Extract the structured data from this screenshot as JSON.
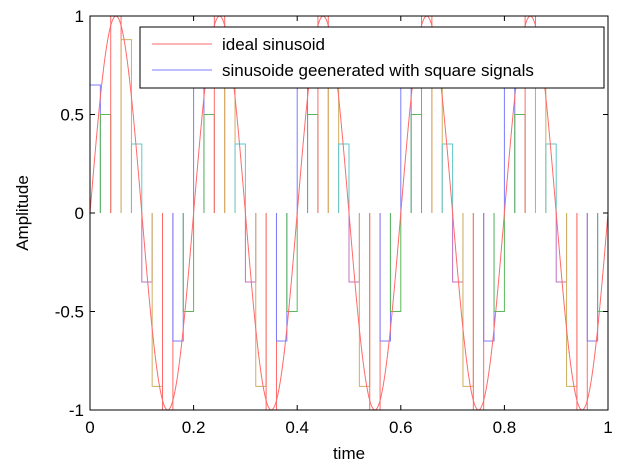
{
  "chart_data": {
    "type": "line",
    "title": "",
    "xlabel": "time",
    "ylabel": "Amplitude",
    "xlim": [
      0,
      1
    ],
    "ylim": [
      -1,
      1
    ],
    "xticks": [
      "0",
      "0.2",
      "0.4",
      "0.6",
      "0.8",
      "1"
    ],
    "yticks": [
      "-1",
      "-0.5",
      "0",
      "0.5",
      "1"
    ],
    "grid": false,
    "legend_position": "top-right",
    "signal": {
      "frequency": 5,
      "steps_per_period": 10
    },
    "series": [
      {
        "name": "ideal sinusoid",
        "color": "#ff6a6a",
        "style": "line",
        "x": [
          0,
          0.025,
          0.05,
          0.075,
          0.1,
          0.125,
          0.15,
          0.175,
          0.2,
          0.225,
          0.25,
          0.275,
          0.3,
          0.325,
          0.35,
          0.375,
          0.4,
          0.425,
          0.45,
          0.475,
          0.5,
          0.525,
          0.55,
          0.575,
          0.6,
          0.625,
          0.65,
          0.675,
          0.7,
          0.725,
          0.75,
          0.775,
          0.8,
          0.825,
          0.85,
          0.875,
          0.9,
          0.925,
          0.95,
          0.975,
          1
        ],
        "values": [
          0,
          0.707,
          1,
          0.707,
          0,
          -0.707,
          -1,
          -0.707,
          0,
          0.707,
          1,
          0.707,
          0,
          -0.707,
          -1,
          -0.707,
          0,
          0.707,
          1,
          0.707,
          0,
          -0.707,
          -1,
          -0.707,
          0,
          0.707,
          1,
          0.707,
          0,
          -0.707,
          -1,
          -0.707,
          0,
          0.707,
          1,
          0.707,
          0,
          -0.707,
          -1,
          -0.707,
          0
        ]
      },
      {
        "name": "sinusoide geenerated with square signals",
        "style": "square-pulses",
        "pulses": [
          {
            "start": 0.0,
            "end": 0.02,
            "value": 0.65,
            "color": "#7b7bff"
          },
          {
            "start": 0.02,
            "end": 0.04,
            "value": 0.5,
            "color": "#5ab85a"
          },
          {
            "start": 0.04,
            "end": 0.06,
            "value": 1.0,
            "color": "#ff6a6a"
          },
          {
            "start": 0.06,
            "end": 0.08,
            "value": 0.88,
            "color": "#d0b060"
          },
          {
            "start": 0.08,
            "end": 0.1,
            "value": 0.35,
            "color": "#60c8c8"
          },
          {
            "start": 0.1,
            "end": 0.12,
            "value": -0.35,
            "color": "#c070c0"
          },
          {
            "start": 0.12,
            "end": 0.14,
            "value": -0.88,
            "color": "#d0b060"
          },
          {
            "start": 0.14,
            "end": 0.16,
            "value": -1.0,
            "color": "#ff6a6a"
          },
          {
            "start": 0.16,
            "end": 0.18,
            "value": -0.65,
            "color": "#7b7bff"
          },
          {
            "start": 0.18,
            "end": 0.2,
            "value": -0.5,
            "color": "#5ab85a"
          }
        ]
      }
    ]
  }
}
